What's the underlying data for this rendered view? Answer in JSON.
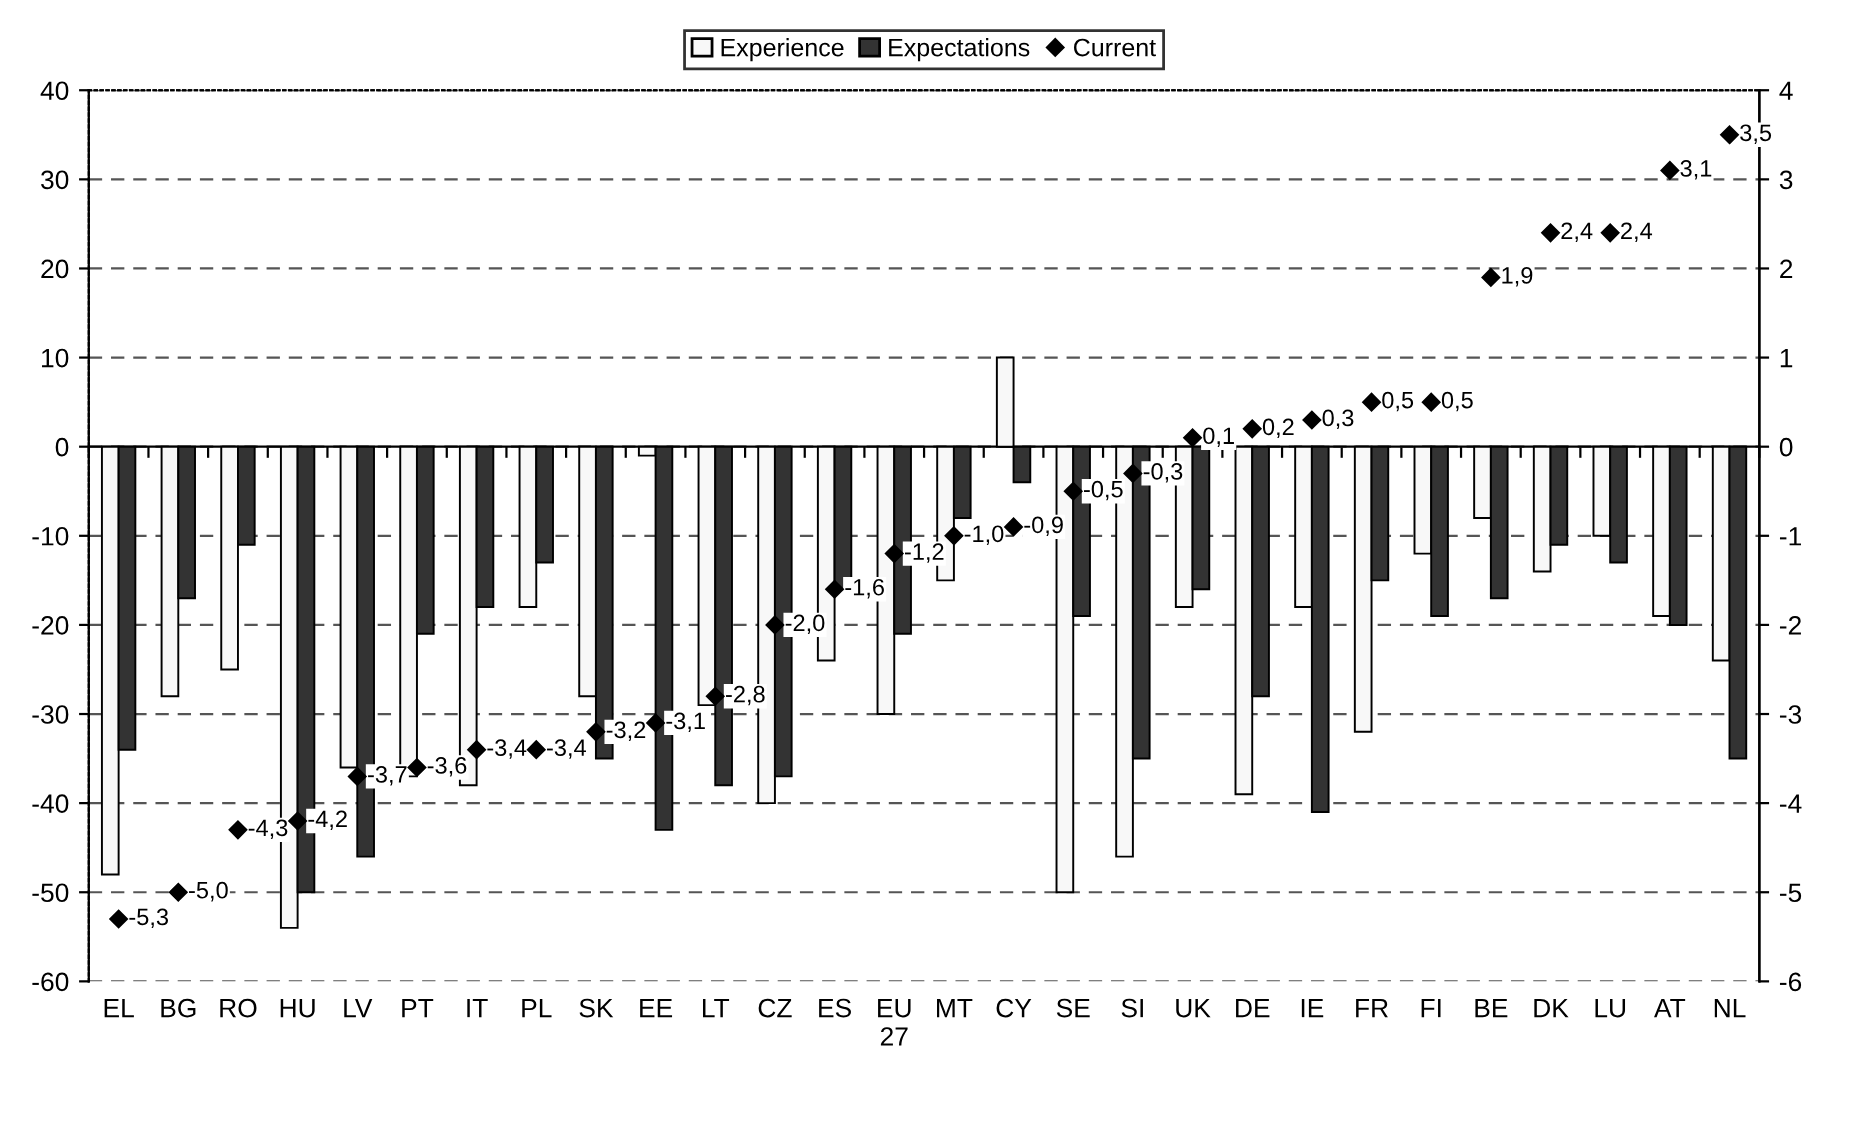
{
  "chart_data": {
    "type": "bar",
    "categories": [
      "EL",
      "BG",
      "RO",
      "HU",
      "LV",
      "PT",
      "IT",
      "PL",
      "SK",
      "EE",
      "LT",
      "CZ",
      "ES",
      "EU\n27",
      "MT",
      "CY",
      "SE",
      "SI",
      "UK",
      "DE",
      "IE",
      "FR",
      "FI",
      "BE",
      "DK",
      "LU",
      "AT",
      "NL"
    ],
    "series": [
      {
        "name": "Experience",
        "color": "#f8f8f8",
        "values": [
          -48,
          -28,
          -25,
          -54,
          -36,
          -37,
          -38,
          -18,
          -28,
          -1,
          -29,
          -40,
          -24,
          -30,
          -15,
          10,
          -50,
          -46,
          -18,
          -39,
          -18,
          -32,
          -12,
          -8,
          -14,
          -10,
          -19,
          -24
        ]
      },
      {
        "name": "Expectations",
        "color": "#333333",
        "values": [
          -34,
          -17,
          -11,
          -50,
          -46,
          -21,
          -18,
          -13,
          -35,
          -43,
          -38,
          -37,
          -16,
          -21,
          -8,
          -4,
          -19,
          -35,
          -16,
          -28,
          -41,
          -15,
          -19,
          -17,
          -11,
          -13,
          -20,
          -35
        ]
      },
      {
        "name": "Current",
        "type": "scatter",
        "axis": "y2",
        "color": "#000000",
        "marker": "diamond",
        "values": [
          -5.3,
          -5.0,
          -4.3,
          -4.2,
          -3.7,
          -3.6,
          -3.4,
          -3.4,
          -3.2,
          -3.1,
          -2.8,
          -2.0,
          -1.6,
          -1.2,
          -1.0,
          -0.9,
          -0.5,
          -0.3,
          0.1,
          0.2,
          0.3,
          0.5,
          0.5,
          1.9,
          2.4,
          2.4,
          3.1,
          3.5
        ],
        "value_labels": [
          "-5,3",
          "-5,0",
          "-4,3",
          "-4,2",
          "-3,7",
          "-3,6",
          "-3,4",
          "-3,4",
          "-3,2",
          "-3,1",
          "-2,8",
          "-2,0",
          "-1,6",
          "-1,2",
          "-1,0",
          "-0,9",
          "-0,5",
          "-0,3",
          "0,1",
          "0,2",
          "0,3",
          "0,5",
          "0,5",
          "1,9",
          "2,4",
          "2,4",
          "3,1",
          "3,5"
        ]
      }
    ],
    "ylim": [
      -60,
      40
    ],
    "yticks": [
      -60,
      -50,
      -40,
      -30,
      -20,
      -10,
      0,
      10,
      20,
      30,
      40
    ],
    "y2lim": [
      -6,
      4
    ],
    "y2ticks": [
      -6,
      -5,
      -4,
      -3,
      -2,
      -1,
      0,
      1,
      2,
      3,
      4
    ],
    "grid": "y",
    "legend": "top"
  }
}
